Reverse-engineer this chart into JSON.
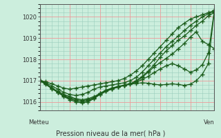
{
  "title": "Pression niveau de la mer( hPa )",
  "xlabel_left": "Metteu",
  "xlabel_right": "Ven",
  "ylabel_values": [
    1016,
    1017,
    1018,
    1019,
    1020
  ],
  "ylim": [
    1015.6,
    1020.6
  ],
  "xlim": [
    0,
    116
  ],
  "background_color": "#cceedd",
  "grid_color_major": "#ee9999",
  "grid_color_minor": "#99ccbb",
  "line_color": "#1a5c1a",
  "marker": "+",
  "markersize": 4,
  "markeredgewidth": 1.0,
  "linewidth": 0.9,
  "series": [
    {
      "x": [
        0,
        4,
        8,
        12,
        16,
        20,
        24,
        28,
        32,
        36,
        40,
        44,
        48,
        52,
        56,
        60,
        64,
        68,
        72,
        76,
        80,
        84,
        88,
        92,
        96,
        100,
        104,
        108,
        112,
        116
      ],
      "y": [
        1017.0,
        1016.95,
        1016.85,
        1016.75,
        1016.65,
        1016.6,
        1016.65,
        1016.7,
        1016.75,
        1016.8,
        1016.85,
        1016.9,
        1016.95,
        1017.0,
        1017.1,
        1017.25,
        1017.45,
        1017.7,
        1018.0,
        1018.3,
        1018.6,
        1018.9,
        1019.2,
        1019.5,
        1019.7,
        1019.9,
        1020.0,
        1020.1,
        1020.2,
        1020.3
      ]
    },
    {
      "x": [
        0,
        4,
        8,
        12,
        16,
        20,
        24,
        28,
        32,
        36,
        40,
        44,
        48,
        52,
        56,
        60,
        64,
        68,
        72,
        76,
        80,
        84,
        88,
        92,
        96,
        100,
        104,
        108,
        112,
        116
      ],
      "y": [
        1017.0,
        1016.9,
        1016.75,
        1016.6,
        1016.45,
        1016.35,
        1016.3,
        1016.35,
        1016.45,
        1016.6,
        1016.7,
        1016.75,
        1016.8,
        1016.85,
        1016.9,
        1017.0,
        1017.15,
        1017.4,
        1017.7,
        1018.0,
        1018.3,
        1018.6,
        1018.85,
        1019.1,
        1019.35,
        1019.6,
        1019.8,
        1020.0,
        1020.15,
        1020.25
      ]
    },
    {
      "x": [
        0,
        4,
        8,
        12,
        16,
        20,
        24,
        28,
        32,
        36,
        40,
        44,
        48,
        52,
        56,
        60,
        64,
        68,
        72,
        76,
        80,
        84,
        88,
        92,
        96,
        100,
        104,
        108,
        112,
        116
      ],
      "y": [
        1017.0,
        1016.85,
        1016.65,
        1016.45,
        1016.25,
        1016.1,
        1016.0,
        1015.95,
        1016.0,
        1016.15,
        1016.35,
        1016.5,
        1016.6,
        1016.7,
        1016.78,
        1016.85,
        1017.0,
        1017.2,
        1017.45,
        1017.75,
        1018.1,
        1018.4,
        1018.65,
        1018.9,
        1019.1,
        1019.35,
        1019.6,
        1019.8,
        1020.05,
        1020.2
      ]
    },
    {
      "x": [
        0,
        4,
        8,
        12,
        16,
        20,
        24,
        28,
        32,
        36,
        40,
        44,
        48,
        52,
        56,
        60,
        64,
        68,
        72,
        76,
        80,
        84,
        88,
        92,
        96,
        100,
        104,
        108,
        112,
        116
      ],
      "y": [
        1017.0,
        1016.85,
        1016.65,
        1016.45,
        1016.28,
        1016.15,
        1016.05,
        1016.0,
        1016.05,
        1016.2,
        1016.4,
        1016.55,
        1016.65,
        1016.72,
        1016.78,
        1016.85,
        1016.95,
        1017.15,
        1017.4,
        1017.65,
        1017.85,
        1018.05,
        1018.25,
        1018.5,
        1018.75,
        1019.05,
        1019.3,
        1018.85,
        1018.7,
        1018.5
      ]
    },
    {
      "x": [
        0,
        4,
        8,
        12,
        16,
        20,
        24,
        28,
        32,
        36,
        40,
        44,
        48,
        52,
        56,
        60,
        64,
        68,
        72,
        76,
        80,
        84,
        88,
        92,
        96,
        100,
        104,
        108,
        112,
        116
      ],
      "y": [
        1017.0,
        1016.85,
        1016.65,
        1016.5,
        1016.35,
        1016.25,
        1016.15,
        1016.1,
        1016.15,
        1016.25,
        1016.4,
        1016.55,
        1016.65,
        1016.73,
        1016.79,
        1016.85,
        1016.92,
        1017.05,
        1017.2,
        1017.38,
        1017.55,
        1017.7,
        1017.8,
        1017.7,
        1017.55,
        1017.4,
        1017.5,
        1017.75,
        1018.3,
        1020.3
      ]
    },
    {
      "x": [
        0,
        4,
        8,
        12,
        16,
        20,
        24,
        28,
        32,
        36,
        40,
        44,
        48,
        52,
        56,
        60,
        64,
        68,
        72,
        76,
        80,
        84,
        88,
        92,
        96,
        100,
        104,
        108,
        112,
        116
      ],
      "y": [
        1017.0,
        1016.82,
        1016.62,
        1016.45,
        1016.3,
        1016.2,
        1016.1,
        1016.07,
        1016.1,
        1016.2,
        1016.35,
        1016.5,
        1016.62,
        1016.7,
        1016.77,
        1016.83,
        1016.87,
        1016.9,
        1016.88,
        1016.83,
        1016.8,
        1016.82,
        1016.85,
        1016.82,
        1016.78,
        1016.83,
        1017.0,
        1017.3,
        1017.8,
        1020.3
      ]
    }
  ]
}
